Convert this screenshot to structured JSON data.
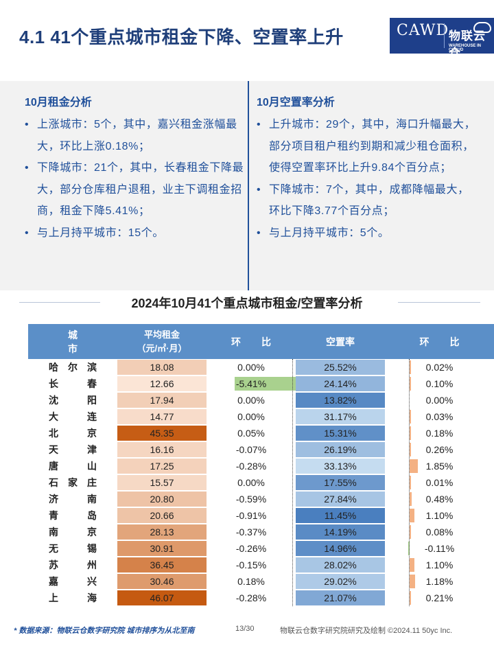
{
  "header": {
    "title": "4.1 41个重点城市租金下降、空置率上升",
    "logo": {
      "primary": "CAWD",
      "secondary": "物联云仓",
      "secondary_sub": "WAREHOUSE IN CLOUD"
    }
  },
  "rent_analysis": {
    "heading": "10月租金分析",
    "items": [
      "上涨城市：5个，其中，嘉兴租金涨幅最大，环比上涨0.18%；",
      "下降城市：21个，其中，长春租金下降最大，部分仓库租户退租，业主下调租金招商，租金下降5.41%；",
      "与上月持平城市：15个。"
    ]
  },
  "vacancy_analysis": {
    "heading": "10月空置率分析",
    "items": [
      "上升城市：29个，其中，海口升幅最大，部分项目租户租约到期和减少租仓面积，使得空置率环比上升9.84个百分点；",
      "下降城市：7个，其中，成都降幅最大，环比下降3.77个百分点；",
      "与上月持平城市：5个。"
    ]
  },
  "table": {
    "title": "2024年10月41个重点城市租金/空置率分析",
    "headers": {
      "city": "城市",
      "rent_line1": "平均租金",
      "rent_line2": "（元/㎡·月）",
      "rent_mom": "环比",
      "vacancy": "空置率",
      "vacancy_mom": "环比"
    },
    "rows": [
      {
        "city": "哈尔滨",
        "rent": "18.08",
        "rent_mom": "0.00%",
        "vacancy": "25.52%",
        "vacancy_mom": "0.02%"
      },
      {
        "city": "长春",
        "rent": "12.66",
        "rent_mom": "-5.41%",
        "vacancy": "24.14%",
        "vacancy_mom": "0.10%"
      },
      {
        "city": "沈阳",
        "rent": "17.94",
        "rent_mom": "0.00%",
        "vacancy": "13.82%",
        "vacancy_mom": "0.00%"
      },
      {
        "city": "大连",
        "rent": "14.77",
        "rent_mom": "0.00%",
        "vacancy": "31.17%",
        "vacancy_mom": "0.03%"
      },
      {
        "city": "北京",
        "rent": "45.35",
        "rent_mom": "0.05%",
        "vacancy": "15.31%",
        "vacancy_mom": "0.18%"
      },
      {
        "city": "天津",
        "rent": "16.16",
        "rent_mom": "-0.07%",
        "vacancy": "26.19%",
        "vacancy_mom": "0.26%"
      },
      {
        "city": "唐山",
        "rent": "17.25",
        "rent_mom": "-0.28%",
        "vacancy": "33.13%",
        "vacancy_mom": "1.85%"
      },
      {
        "city": "石家庄",
        "rent": "15.57",
        "rent_mom": "0.00%",
        "vacancy": "17.55%",
        "vacancy_mom": "0.01%"
      },
      {
        "city": "济南",
        "rent": "20.80",
        "rent_mom": "-0.59%",
        "vacancy": "27.84%",
        "vacancy_mom": "0.48%"
      },
      {
        "city": "青岛",
        "rent": "20.66",
        "rent_mom": "-0.91%",
        "vacancy": "11.45%",
        "vacancy_mom": "1.10%"
      },
      {
        "city": "南京",
        "rent": "28.13",
        "rent_mom": "-0.37%",
        "vacancy": "14.19%",
        "vacancy_mom": "0.08%"
      },
      {
        "city": "无锡",
        "rent": "30.91",
        "rent_mom": "-0.26%",
        "vacancy": "14.96%",
        "vacancy_mom": "-0.11%"
      },
      {
        "city": "苏州",
        "rent": "36.45",
        "rent_mom": "-0.15%",
        "vacancy": "28.02%",
        "vacancy_mom": "1.10%"
      },
      {
        "city": "嘉兴",
        "rent": "30.46",
        "rent_mom": "0.18%",
        "vacancy": "29.02%",
        "vacancy_mom": "1.18%"
      },
      {
        "city": "上海",
        "rent": "46.07",
        "rent_mom": "-0.28%",
        "vacancy": "21.07%",
        "vacancy_mom": "0.21%"
      }
    ]
  },
  "footer": {
    "source": "* 数据来源：物联云仓数字研究院    城市排序为从北至南",
    "page": "13/30",
    "credit": "物联云仓数字研究院研究及绘制   ©2024.11 50yc Inc."
  },
  "colors": {
    "title": "#1f3f7a",
    "header_bg": "#5b8fc8",
    "rent_low": "#fbe5d6",
    "rent_high": "#c55a11",
    "vacancy_low": "#c5dcf0",
    "vacancy_high": "#4a7fbf",
    "negative_bar": "#a9d18e",
    "positive_bar": "#f4b183"
  }
}
